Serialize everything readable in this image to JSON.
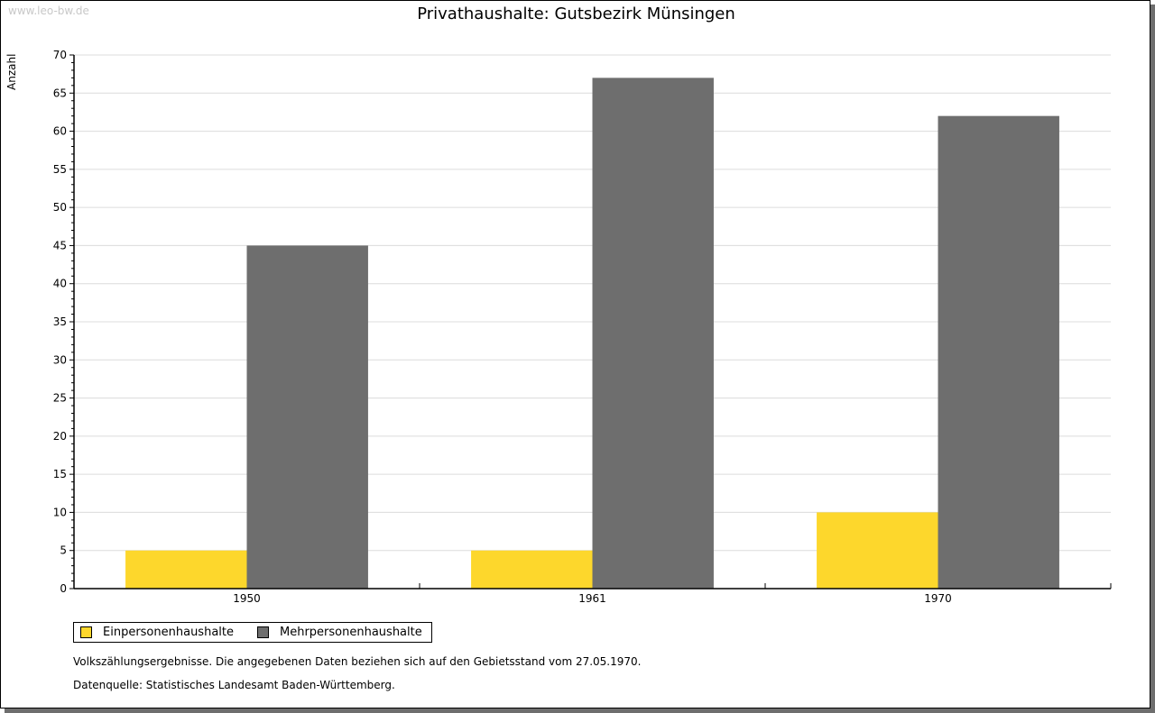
{
  "watermark": "www.leo-bw.de",
  "chart_data": {
    "type": "bar",
    "title": "Privathaushalte: Gutsbezirk Münsingen",
    "ylabel": "Anzahl",
    "xlabel": "",
    "categories": [
      "1950",
      "1961",
      "1970"
    ],
    "series": [
      {
        "name": "Einpersonenhaushalte",
        "color": "#fdd72c",
        "values": [
          5,
          5,
          10
        ]
      },
      {
        "name": "Mehrpersonenhaushalte",
        "color": "#6e6e6e",
        "values": [
          45,
          67,
          62
        ]
      }
    ],
    "ylim": [
      0,
      70
    ],
    "yticks": [
      0,
      5,
      10,
      15,
      20,
      25,
      30,
      35,
      40,
      45,
      50,
      55,
      60,
      65,
      70
    ],
    "grid": true,
    "legend": "bottom-left"
  },
  "notes": [
    "Volkszählungsergebnisse. Die angegebenen Daten beziehen sich auf den Gebietsstand vom 27.05.1970.",
    "Datenquelle: Statistisches Landesamt Baden-Württemberg."
  ]
}
